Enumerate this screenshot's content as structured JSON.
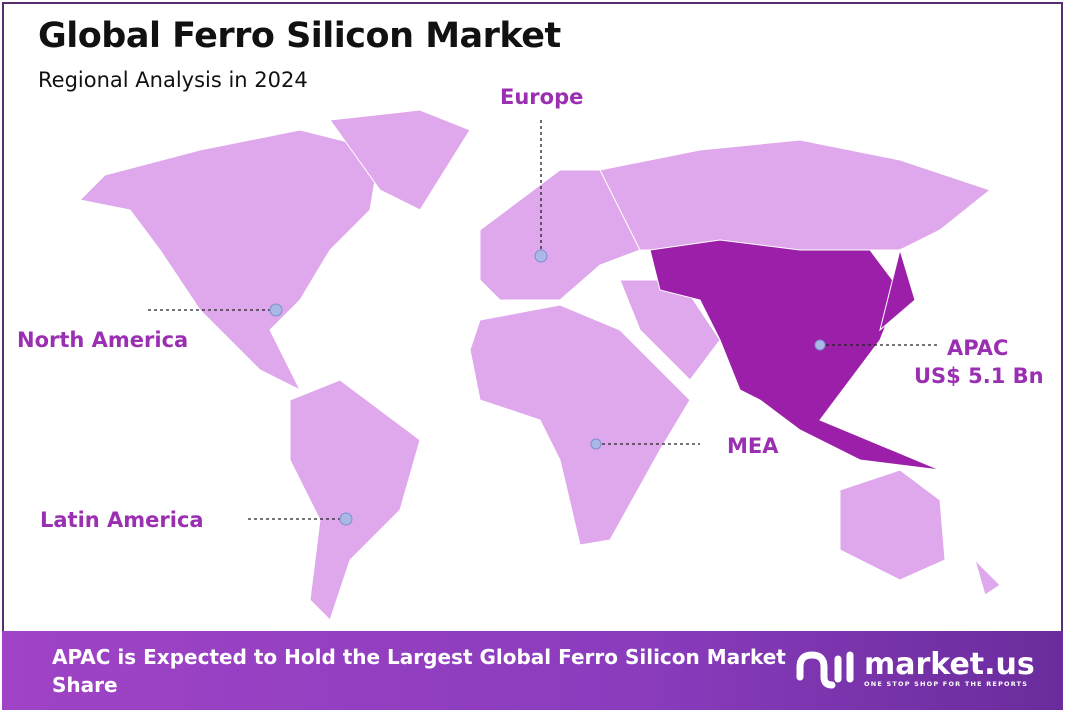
{
  "header": {
    "title": "Global Ferro Silicon Market",
    "subtitle": "Regional Analysis in 2024"
  },
  "colors": {
    "region_default": "#dfa7ec",
    "region_highlight": "#9b1fa8",
    "label": "#9b2fb2",
    "marker": "#a9b8e6"
  },
  "regions": [
    {
      "name": "North America"
    },
    {
      "name": "Europe"
    },
    {
      "name": "APAC",
      "value": "US$ 5.1 Bn",
      "highlighted": true
    },
    {
      "name": "MEA"
    },
    {
      "name": "Latin America"
    }
  ],
  "footer": {
    "text": "APAC is Expected to Hold the Largest Global Ferro Silicon Market Share"
  },
  "logo": {
    "name": "market.us",
    "tagline": "ONE STOP SHOP FOR THE REPORTS"
  }
}
